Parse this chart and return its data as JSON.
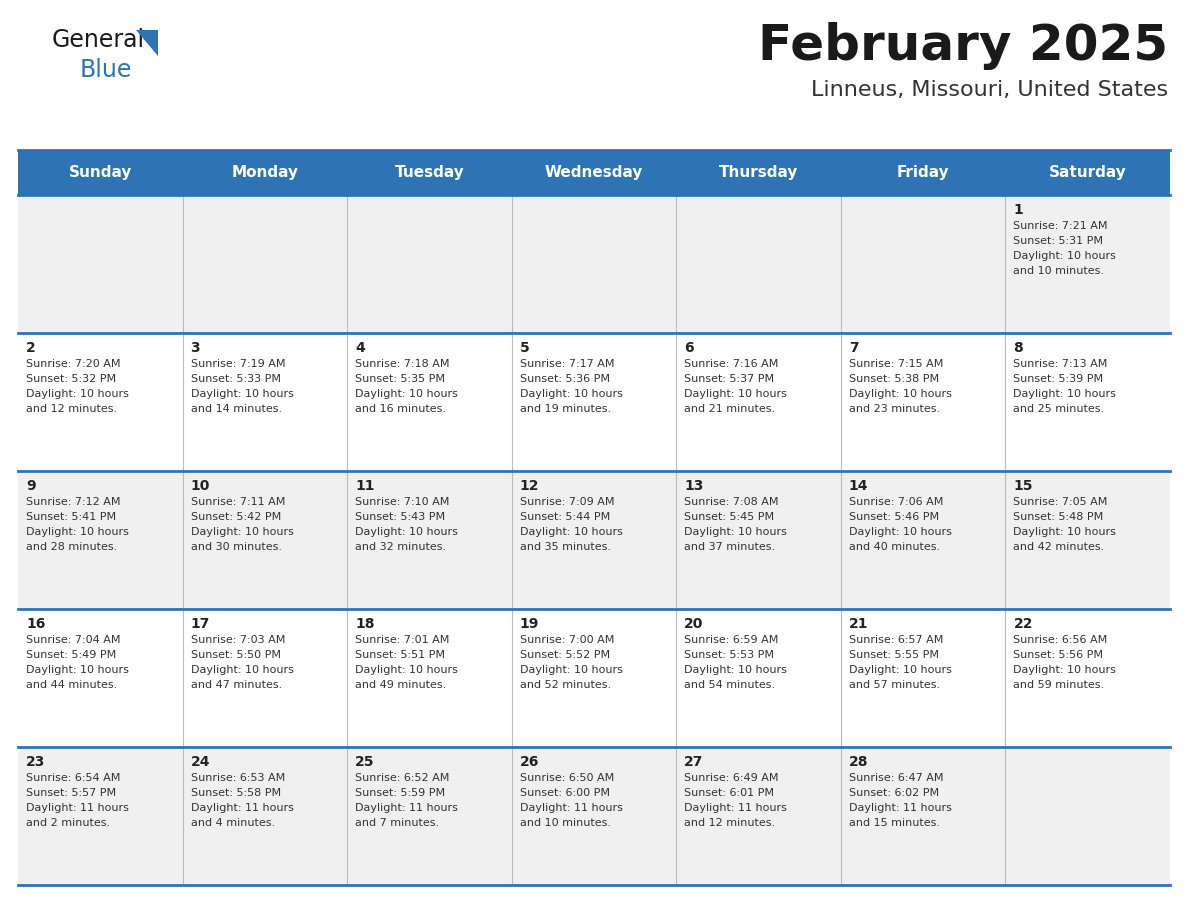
{
  "title": "February 2025",
  "subtitle": "Linneus, Missouri, United States",
  "header_bg": "#2E74B5",
  "header_text_color": "#FFFFFF",
  "day_names": [
    "Sunday",
    "Monday",
    "Tuesday",
    "Wednesday",
    "Thursday",
    "Friday",
    "Saturday"
  ],
  "title_color": "#1a1a1a",
  "subtitle_color": "#333333",
  "cell_bg_even": "#F0F0F0",
  "cell_bg_white": "#FFFFFF",
  "cell_border_color": "#2E74B5",
  "day_num_color": "#222222",
  "info_color": "#333333",
  "logo_general_color": "#1a1a1a",
  "logo_blue_color": "#2E74B5",
  "logo_triangle_color": "#2E74B5",
  "days": [
    {
      "date": 1,
      "col": 6,
      "row": 0,
      "sunrise": "7:21 AM",
      "sunset": "5:31 PM",
      "daylight": "10 hours and 10 minutes."
    },
    {
      "date": 2,
      "col": 0,
      "row": 1,
      "sunrise": "7:20 AM",
      "sunset": "5:32 PM",
      "daylight": "10 hours and 12 minutes."
    },
    {
      "date": 3,
      "col": 1,
      "row": 1,
      "sunrise": "7:19 AM",
      "sunset": "5:33 PM",
      "daylight": "10 hours and 14 minutes."
    },
    {
      "date": 4,
      "col": 2,
      "row": 1,
      "sunrise": "7:18 AM",
      "sunset": "5:35 PM",
      "daylight": "10 hours and 16 minutes."
    },
    {
      "date": 5,
      "col": 3,
      "row": 1,
      "sunrise": "7:17 AM",
      "sunset": "5:36 PM",
      "daylight": "10 hours and 19 minutes."
    },
    {
      "date": 6,
      "col": 4,
      "row": 1,
      "sunrise": "7:16 AM",
      "sunset": "5:37 PM",
      "daylight": "10 hours and 21 minutes."
    },
    {
      "date": 7,
      "col": 5,
      "row": 1,
      "sunrise": "7:15 AM",
      "sunset": "5:38 PM",
      "daylight": "10 hours and 23 minutes."
    },
    {
      "date": 8,
      "col": 6,
      "row": 1,
      "sunrise": "7:13 AM",
      "sunset": "5:39 PM",
      "daylight": "10 hours and 25 minutes."
    },
    {
      "date": 9,
      "col": 0,
      "row": 2,
      "sunrise": "7:12 AM",
      "sunset": "5:41 PM",
      "daylight": "10 hours and 28 minutes."
    },
    {
      "date": 10,
      "col": 1,
      "row": 2,
      "sunrise": "7:11 AM",
      "sunset": "5:42 PM",
      "daylight": "10 hours and 30 minutes."
    },
    {
      "date": 11,
      "col": 2,
      "row": 2,
      "sunrise": "7:10 AM",
      "sunset": "5:43 PM",
      "daylight": "10 hours and 32 minutes."
    },
    {
      "date": 12,
      "col": 3,
      "row": 2,
      "sunrise": "7:09 AM",
      "sunset": "5:44 PM",
      "daylight": "10 hours and 35 minutes."
    },
    {
      "date": 13,
      "col": 4,
      "row": 2,
      "sunrise": "7:08 AM",
      "sunset": "5:45 PM",
      "daylight": "10 hours and 37 minutes."
    },
    {
      "date": 14,
      "col": 5,
      "row": 2,
      "sunrise": "7:06 AM",
      "sunset": "5:46 PM",
      "daylight": "10 hours and 40 minutes."
    },
    {
      "date": 15,
      "col": 6,
      "row": 2,
      "sunrise": "7:05 AM",
      "sunset": "5:48 PM",
      "daylight": "10 hours and 42 minutes."
    },
    {
      "date": 16,
      "col": 0,
      "row": 3,
      "sunrise": "7:04 AM",
      "sunset": "5:49 PM",
      "daylight": "10 hours and 44 minutes."
    },
    {
      "date": 17,
      "col": 1,
      "row": 3,
      "sunrise": "7:03 AM",
      "sunset": "5:50 PM",
      "daylight": "10 hours and 47 minutes."
    },
    {
      "date": 18,
      "col": 2,
      "row": 3,
      "sunrise": "7:01 AM",
      "sunset": "5:51 PM",
      "daylight": "10 hours and 49 minutes."
    },
    {
      "date": 19,
      "col": 3,
      "row": 3,
      "sunrise": "7:00 AM",
      "sunset": "5:52 PM",
      "daylight": "10 hours and 52 minutes."
    },
    {
      "date": 20,
      "col": 4,
      "row": 3,
      "sunrise": "6:59 AM",
      "sunset": "5:53 PM",
      "daylight": "10 hours and 54 minutes."
    },
    {
      "date": 21,
      "col": 5,
      "row": 3,
      "sunrise": "6:57 AM",
      "sunset": "5:55 PM",
      "daylight": "10 hours and 57 minutes."
    },
    {
      "date": 22,
      "col": 6,
      "row": 3,
      "sunrise": "6:56 AM",
      "sunset": "5:56 PM",
      "daylight": "10 hours and 59 minutes."
    },
    {
      "date": 23,
      "col": 0,
      "row": 4,
      "sunrise": "6:54 AM",
      "sunset": "5:57 PM",
      "daylight": "11 hours and 2 minutes."
    },
    {
      "date": 24,
      "col": 1,
      "row": 4,
      "sunrise": "6:53 AM",
      "sunset": "5:58 PM",
      "daylight": "11 hours and 4 minutes."
    },
    {
      "date": 25,
      "col": 2,
      "row": 4,
      "sunrise": "6:52 AM",
      "sunset": "5:59 PM",
      "daylight": "11 hours and 7 minutes."
    },
    {
      "date": 26,
      "col": 3,
      "row": 4,
      "sunrise": "6:50 AM",
      "sunset": "6:00 PM",
      "daylight": "11 hours and 10 minutes."
    },
    {
      "date": 27,
      "col": 4,
      "row": 4,
      "sunrise": "6:49 AM",
      "sunset": "6:01 PM",
      "daylight": "11 hours and 12 minutes."
    },
    {
      "date": 28,
      "col": 5,
      "row": 4,
      "sunrise": "6:47 AM",
      "sunset": "6:02 PM",
      "daylight": "11 hours and 15 minutes."
    }
  ],
  "num_rows": 5,
  "num_cols": 7
}
